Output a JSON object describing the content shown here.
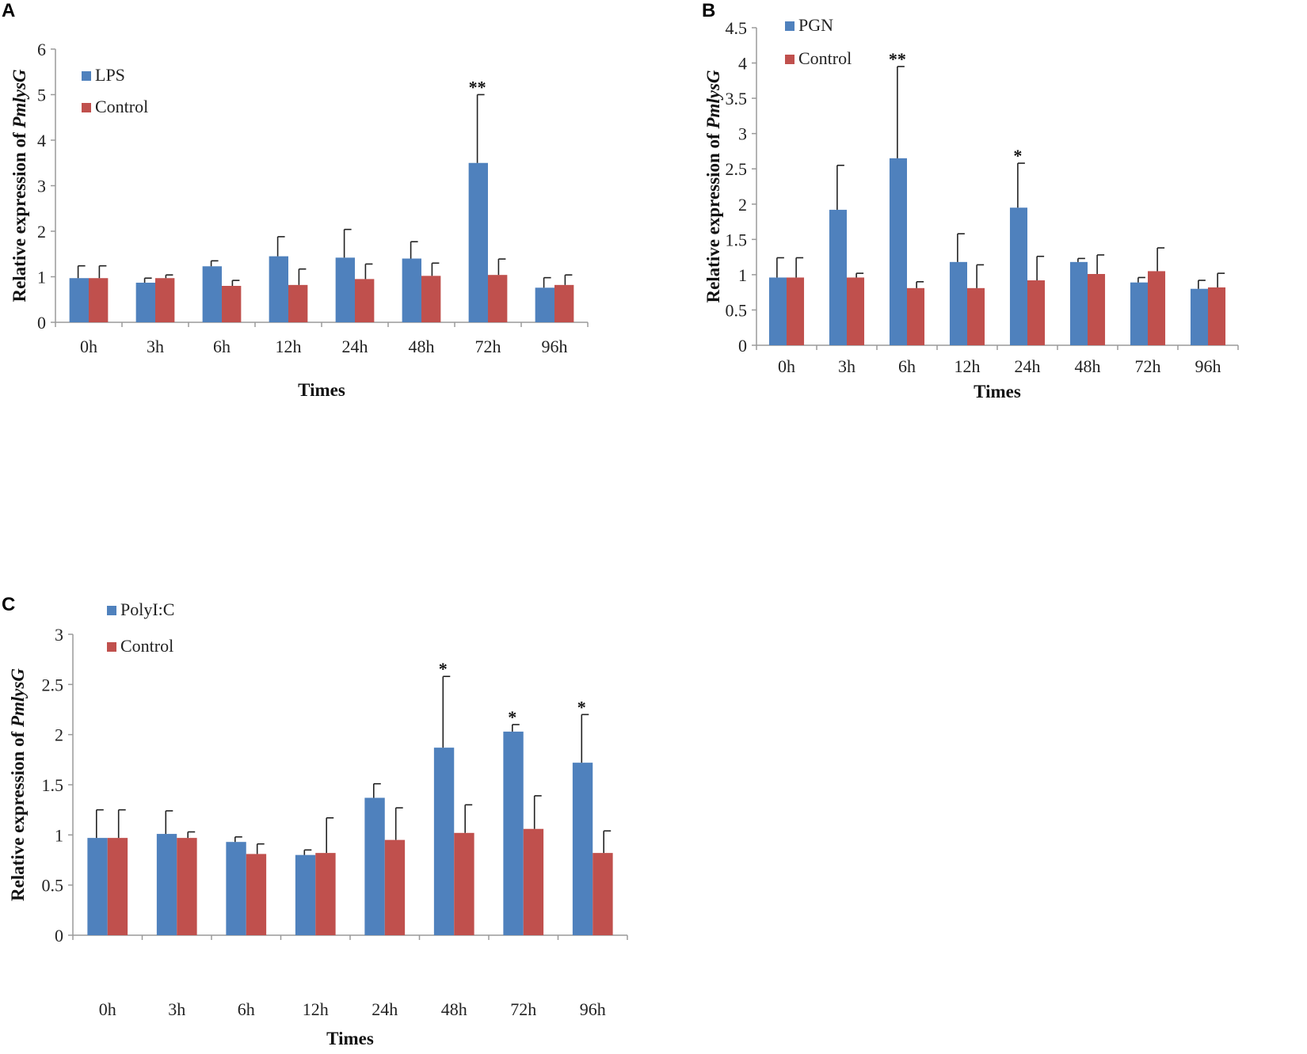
{
  "colors": {
    "treatment": "#4f81bd",
    "control": "#c0504d",
    "axis": "#9a9a9a",
    "errorbar": "#222222"
  },
  "chart_data": [
    {
      "panel": "A",
      "type": "bar",
      "title": "",
      "xlabel": "Times",
      "ylabel_prefix": "Relative expression of ",
      "ylabel_gene": "PmlysG",
      "ylim": [
        0,
        6
      ],
      "yticks": [
        "0",
        "1",
        "2",
        "3",
        "4",
        "5",
        "6"
      ],
      "categories": [
        "0h",
        "3h",
        "6h",
        "12h",
        "24h",
        "48h",
        "72h",
        "96h"
      ],
      "series": [
        {
          "name": "LPS",
          "color_key": "treatment",
          "values": [
            0.97,
            0.87,
            1.23,
            1.45,
            1.42,
            1.4,
            3.5,
            0.76
          ],
          "error": [
            0.27,
            0.1,
            0.12,
            0.43,
            0.62,
            0.37,
            1.5,
            0.22
          ]
        },
        {
          "name": "Control",
          "color_key": "control",
          "values": [
            0.97,
            0.97,
            0.8,
            0.82,
            0.95,
            1.02,
            1.04,
            0.82
          ],
          "error": [
            0.27,
            0.07,
            0.12,
            0.35,
            0.33,
            0.28,
            0.35,
            0.22
          ]
        }
      ],
      "significance": [
        {
          "category_index": 6,
          "series_index": 0,
          "label": "**"
        }
      ],
      "legend_position": "top-left"
    },
    {
      "panel": "B",
      "type": "bar",
      "title": "",
      "xlabel": "Times",
      "ylabel_prefix": "Relative expression of ",
      "ylabel_gene": "PmlysG",
      "ylim": [
        0,
        4.5
      ],
      "yticks": [
        "0",
        "0.5",
        "1",
        "1.5",
        "2",
        "2.5",
        "3",
        "3.5",
        "4",
        "4.5"
      ],
      "categories": [
        "0h",
        "3h",
        "6h",
        "12h",
        "24h",
        "48h",
        "72h",
        "96h"
      ],
      "series": [
        {
          "name": "PGN",
          "color_key": "treatment",
          "values": [
            0.96,
            1.92,
            2.65,
            1.18,
            1.95,
            1.18,
            0.89,
            0.8
          ],
          "error": [
            0.28,
            0.63,
            1.3,
            0.4,
            0.63,
            0.05,
            0.07,
            0.12
          ]
        },
        {
          "name": "Control",
          "color_key": "control",
          "values": [
            0.96,
            0.96,
            0.81,
            0.81,
            0.92,
            1.01,
            1.05,
            0.82
          ],
          "error": [
            0.28,
            0.06,
            0.09,
            0.33,
            0.34,
            0.27,
            0.33,
            0.2
          ]
        }
      ],
      "significance": [
        {
          "category_index": 2,
          "series_index": 0,
          "label": "**"
        },
        {
          "category_index": 4,
          "series_index": 0,
          "label": "*"
        }
      ],
      "legend_position": "top-left"
    },
    {
      "panel": "C",
      "type": "bar",
      "title": "",
      "xlabel": "Times",
      "ylabel_prefix": "Relative expression of ",
      "ylabel_gene": "PmlysG",
      "ylim": [
        0,
        3
      ],
      "yticks": [
        "0",
        "0.5",
        "1",
        "1.5",
        "2",
        "2.5",
        "3"
      ],
      "categories": [
        "0h",
        "3h",
        "6h",
        "12h",
        "24h",
        "48h",
        "72h",
        "96h"
      ],
      "series": [
        {
          "name": "PolyI:C",
          "color_key": "treatment",
          "values": [
            0.97,
            1.01,
            0.93,
            0.8,
            1.37,
            1.87,
            2.03,
            1.72
          ],
          "error": [
            0.28,
            0.23,
            0.05,
            0.05,
            0.14,
            0.71,
            0.07,
            0.48
          ]
        },
        {
          "name": "Control",
          "color_key": "control",
          "values": [
            0.97,
            0.97,
            0.81,
            0.82,
            0.95,
            1.02,
            1.06,
            0.82
          ],
          "error": [
            0.28,
            0.06,
            0.1,
            0.35,
            0.32,
            0.28,
            0.33,
            0.22
          ]
        }
      ],
      "significance": [
        {
          "category_index": 5,
          "series_index": 0,
          "label": "*"
        },
        {
          "category_index": 6,
          "series_index": 0,
          "label": "*"
        },
        {
          "category_index": 7,
          "series_index": 0,
          "label": "*"
        }
      ],
      "legend_position": "top-left"
    }
  ]
}
